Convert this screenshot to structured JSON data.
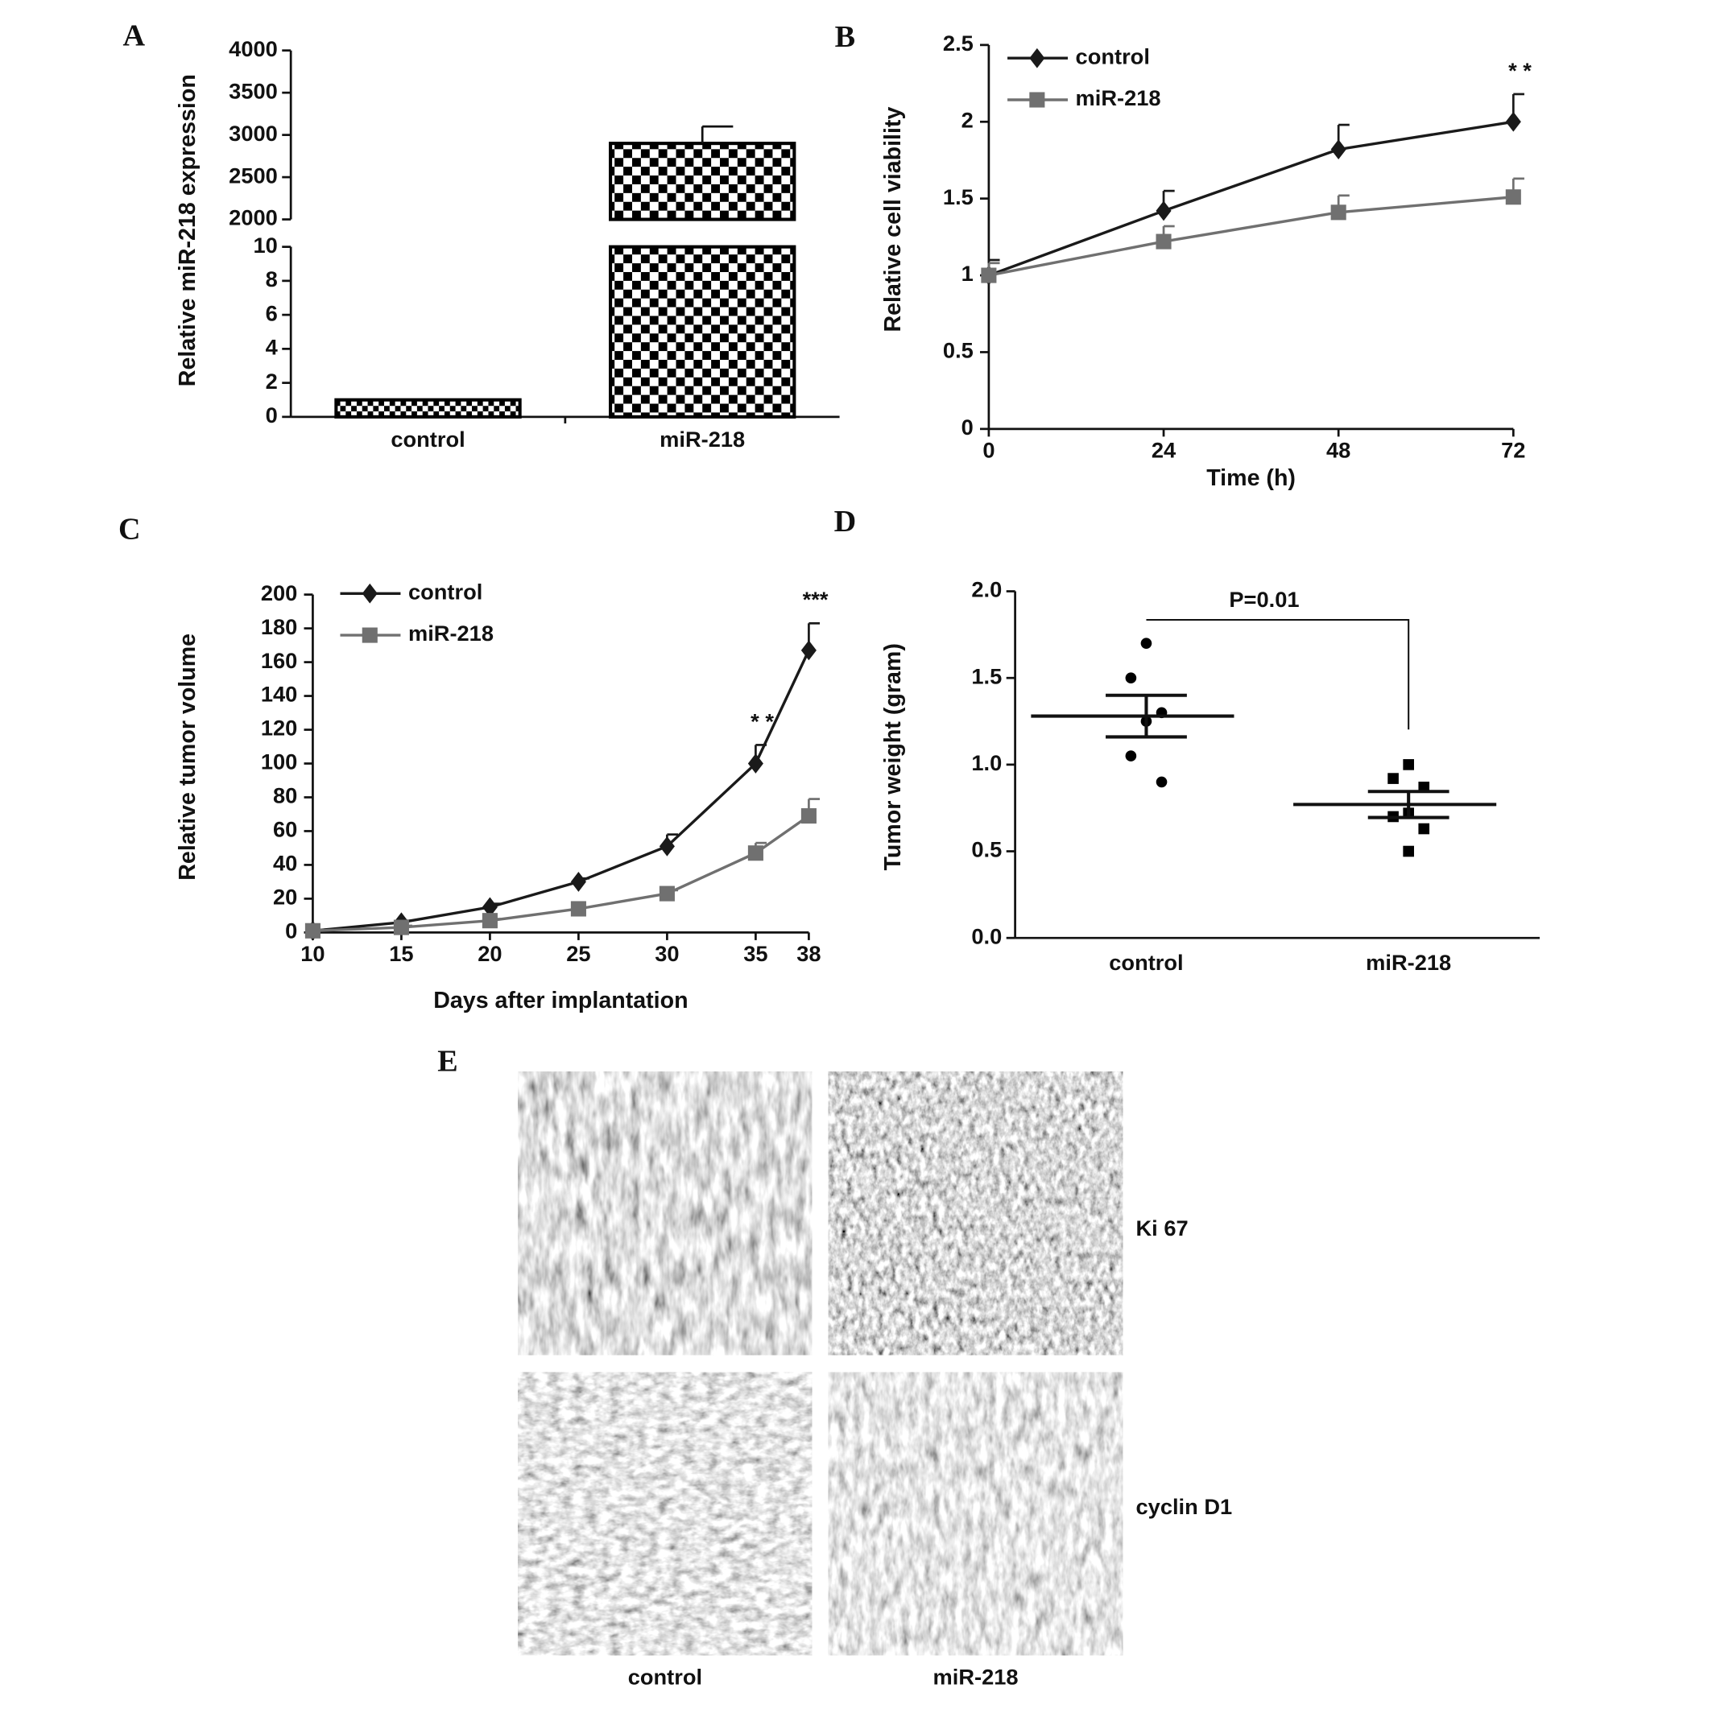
{
  "chart_data": [
    {
      "panel": "A",
      "type": "bar",
      "ylabel": "Relative miR-218 expression",
      "categories": [
        "control",
        "miR-218"
      ],
      "values": [
        1,
        2900
      ],
      "errors": [
        0,
        200
      ],
      "color": "#000000",
      "ylim": [
        0,
        4000
      ],
      "axis_break": [
        10,
        2000
      ],
      "yticks": [
        0,
        2,
        4,
        6,
        8,
        10,
        2000,
        2500,
        3000,
        3500,
        4000
      ]
    },
    {
      "panel": "B",
      "type": "line",
      "xlabel": "Time (h)",
      "ylabel": "Relative cell viability",
      "x": [
        0,
        24,
        48,
        72
      ],
      "series": [
        {
          "name": "control",
          "color": "#1a1a1a",
          "marker": "diamond",
          "values": [
            1,
            1.42,
            1.82,
            2.0
          ],
          "errors": [
            0.1,
            0.13,
            0.16,
            0.18
          ]
        },
        {
          "name": "miR-218",
          "color": "#707070",
          "marker": "square",
          "values": [
            1,
            1.22,
            1.41,
            1.51
          ],
          "errors": [
            0.08,
            0.1,
            0.11,
            0.12
          ]
        }
      ],
      "xlim": [
        0,
        72
      ],
      "xticks": [
        0,
        24,
        48,
        72
      ],
      "ylim": [
        0,
        2.5
      ],
      "yticks": [
        0,
        0.5,
        1,
        1.5,
        2,
        2.5
      ],
      "annotations": [
        {
          "text": "* *",
          "x": 72
        }
      ]
    },
    {
      "panel": "C",
      "type": "line",
      "xlabel": "Days after implantation",
      "ylabel": "Relative tumor volume",
      "x": [
        10,
        15,
        20,
        25,
        30,
        35,
        38
      ],
      "series": [
        {
          "name": "control",
          "color": "#1a1a1a",
          "marker": "diamond",
          "values": [
            1,
            6,
            15,
            30,
            51,
            100,
            167
          ],
          "errors": [
            0.5,
            1,
            2,
            2,
            7,
            11,
            16
          ]
        },
        {
          "name": "miR-218",
          "color": "#707070",
          "marker": "square",
          "values": [
            1,
            3,
            7,
            14,
            23,
            47,
            69
          ],
          "errors": [
            0.5,
            1,
            1,
            1,
            2,
            6,
            10
          ]
        }
      ],
      "xlim": [
        10,
        38
      ],
      "xticks": [
        10,
        15,
        20,
        25,
        30,
        35,
        38
      ],
      "ylim": [
        0,
        200
      ],
      "yticks": [
        0,
        20,
        40,
        60,
        80,
        100,
        120,
        140,
        160,
        180,
        200
      ],
      "annotations": [
        {
          "text": "* *",
          "x": 35
        },
        {
          "text": "***",
          "x": 38
        }
      ]
    },
    {
      "panel": "D",
      "type": "dot",
      "ylabel": "Tumor weight (gram)",
      "categories": [
        "control",
        "miR-218"
      ],
      "color": "#000000",
      "groups": [
        {
          "marker": "circle",
          "values": [
            1.7,
            1.5,
            1.3,
            1.25,
            1.05,
            0.9
          ],
          "mean": 1.28,
          "sem": 0.12
        },
        {
          "marker": "square",
          "values": [
            1.0,
            0.92,
            0.87,
            0.72,
            0.7,
            0.63,
            0.5
          ],
          "mean": 0.77,
          "sem": 0.075
        }
      ],
      "ylim": [
        0,
        2
      ],
      "yticks": [
        {
          "value": 0,
          "label": "0.0"
        },
        {
          "value": 0.5,
          "label": "0.5"
        },
        {
          "value": 1,
          "label": "1.0"
        },
        {
          "value": 1.5,
          "label": "1.5"
        },
        {
          "value": 2,
          "label": "2.0"
        }
      ],
      "annotations": [
        {
          "text": "P=0.01"
        }
      ]
    }
  ],
  "figure_e": {
    "panel": "E",
    "rows": [
      "Ki 67",
      "cyclin D1"
    ],
    "columns": [
      "control",
      "miR-218"
    ]
  }
}
